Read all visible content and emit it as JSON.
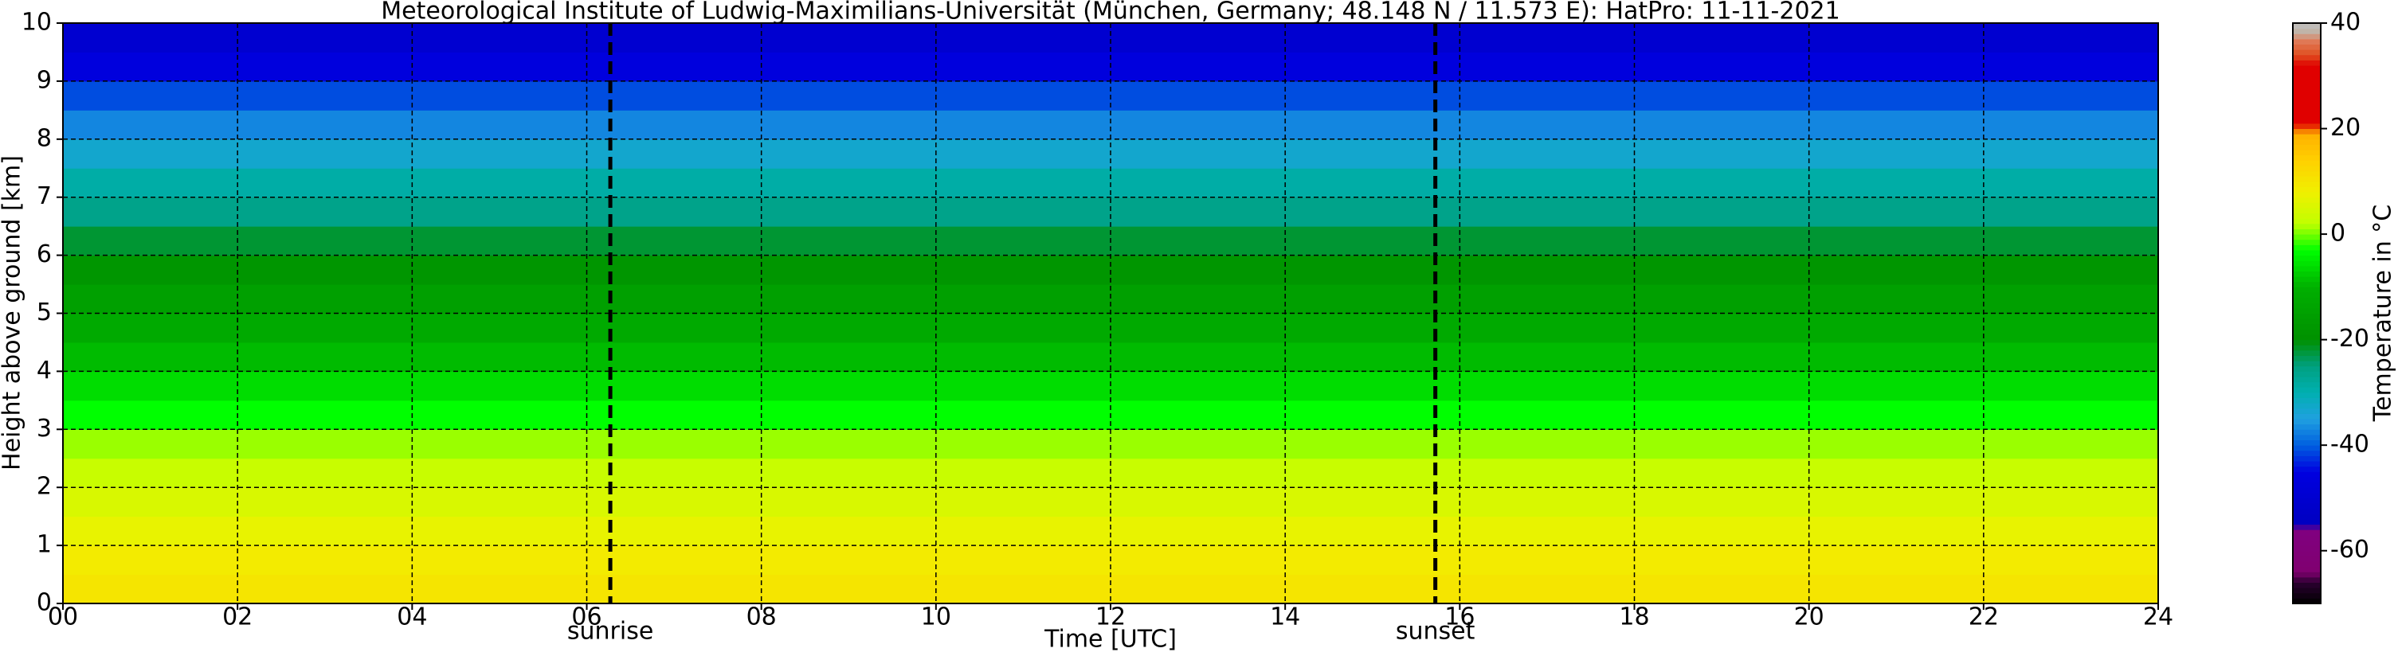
{
  "chart_data": {
    "type": "heatmap",
    "title": "Meteorological Institute of Ludwig-Maximilians-Universität (München, Germany; 48.148 N / 11.573 E):    HatPro: 11-11-2021",
    "xlabel": "Time [UTC]",
    "ylabel": "Height above ground [km]",
    "colorbar_label": "Temperature in $^\\circ$C",
    "xlim": [
      0,
      24
    ],
    "xticks": [
      {
        "value": 0,
        "label": "00"
      },
      {
        "value": 2,
        "label": "02"
      },
      {
        "value": 4,
        "label": "04"
      },
      {
        "value": 6,
        "label": "06"
      },
      {
        "value": 8,
        "label": "08"
      },
      10,
      12,
      14,
      16,
      18,
      20,
      22,
      24
    ],
    "ylim": [
      0,
      10
    ],
    "yticks": [
      0,
      1,
      2,
      3,
      4,
      5,
      6,
      7,
      8,
      9,
      10
    ],
    "clim": [
      -70,
      40
    ],
    "cticks": [
      -60,
      -40,
      -20,
      0,
      20,
      40
    ],
    "grid": true,
    "ybins": [
      0,
      0.5,
      1,
      1.5,
      2,
      2.5,
      3,
      3.5,
      4,
      4.5,
      5,
      5.5,
      6,
      6.5,
      7,
      7.5,
      8,
      8.5,
      9,
      9.5,
      10
    ],
    "values": [
      10,
      9,
      7,
      5,
      3,
      1,
      -3,
      -6,
      -9,
      -12,
      -15,
      -18,
      -22,
      -26,
      -29,
      -33,
      -37,
      -41,
      -46,
      -50
    ],
    "colormap": [
      [
        -70,
        "#000000"
      ],
      [
        -66,
        "#2a0030"
      ],
      [
        -64,
        "#800070"
      ],
      [
        -56,
        "#800080"
      ],
      [
        -55,
        "#0000c0"
      ],
      [
        -45,
        "#0000e0"
      ],
      [
        -40,
        "#0060e0"
      ],
      [
        -35,
        "#20a0e0"
      ],
      [
        -30,
        "#00b0b0"
      ],
      [
        -25,
        "#00a080"
      ],
      [
        -20,
        "#009000"
      ],
      [
        -10,
        "#00b000"
      ],
      [
        -3,
        "#00ff00"
      ],
      [
        2,
        "#c0ff00"
      ],
      [
        8,
        "#f0f000"
      ],
      [
        14,
        "#ffd000"
      ],
      [
        19,
        "#ffb000"
      ],
      [
        21,
        "#e00000"
      ],
      [
        32,
        "#e00000"
      ],
      [
        34,
        "#e05020"
      ],
      [
        37,
        "#e08060"
      ],
      [
        38,
        "#c0b0a0"
      ],
      [
        40,
        "#c0c0c0"
      ]
    ],
    "events": [
      {
        "x": 6.27,
        "label": "sunrise"
      },
      {
        "x": 15.72,
        "label": "sunset"
      }
    ]
  }
}
